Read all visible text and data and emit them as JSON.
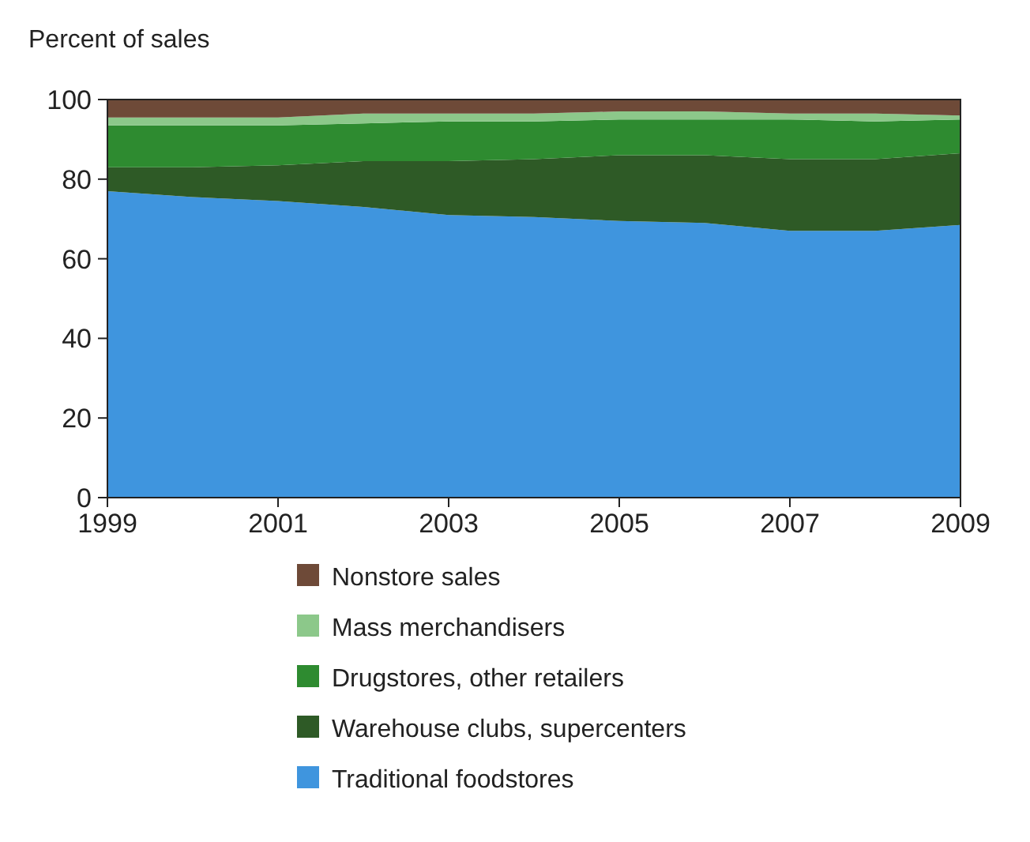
{
  "chart_data": {
    "type": "area",
    "stacked": true,
    "ylabel": "Percent of sales",
    "x": [
      1999,
      2000,
      2001,
      2002,
      2003,
      2004,
      2005,
      2006,
      2007,
      2008,
      2009
    ],
    "xlim": [
      1999,
      2009
    ],
    "xticks": [
      1999,
      2001,
      2003,
      2005,
      2007,
      2009
    ],
    "ylim": [
      0,
      100
    ],
    "yticks": [
      0,
      20,
      40,
      60,
      80,
      100
    ],
    "legend": "bottom",
    "series": [
      {
        "name": "Traditional foodstores",
        "color": "#3f95de",
        "values": [
          77,
          75.5,
          74.5,
          73,
          71,
          70.5,
          69.5,
          69,
          67,
          67,
          68.5
        ]
      },
      {
        "name": "Warehouse clubs, supercenters",
        "color": "#2e5a26",
        "values": [
          6,
          7.5,
          9,
          11.5,
          13.5,
          14.5,
          16.5,
          17,
          18,
          18,
          18
        ]
      },
      {
        "name": "Drugstores, other retailers",
        "color": "#2e8b30",
        "values": [
          10.5,
          10.5,
          10,
          9.5,
          10,
          9.5,
          9,
          9,
          10,
          9.5,
          8.5
        ]
      },
      {
        "name": "Mass merchandisers",
        "color": "#8cc88a",
        "values": [
          2,
          2,
          2,
          2.5,
          2,
          2,
          2,
          2,
          1.5,
          2,
          1
        ]
      },
      {
        "name": "Nonstore sales",
        "color": "#6e4a38",
        "values": [
          4.5,
          4.5,
          4.5,
          3.5,
          3.5,
          3.5,
          3,
          3,
          3.5,
          3.5,
          4
        ]
      }
    ]
  }
}
